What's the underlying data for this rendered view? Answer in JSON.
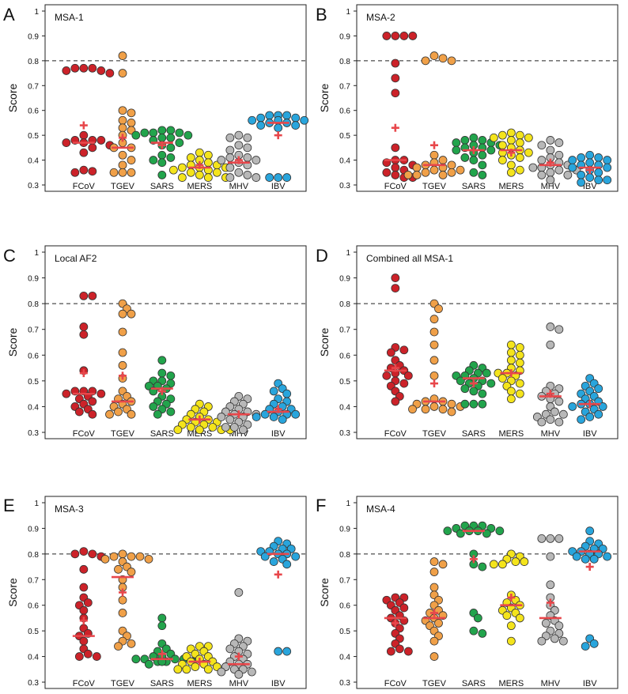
{
  "figure": {
    "ylabel": "Score",
    "yticks": [
      "0.3",
      "0.4",
      "0.5",
      "0.6",
      "0.7",
      "0.8",
      "0.9",
      "1"
    ],
    "threshold": 0.8,
    "categories": [
      "FCoV",
      "TGEV",
      "SARS",
      "MERS",
      "MHV",
      "IBV"
    ],
    "category_colors": {
      "FCoV": "#cc2229",
      "TGEV": "#f0a048",
      "SARS": "#22a44c",
      "MERS": "#f4e41c",
      "MHV": "#b8b8b8",
      "IBV": "#29a5dc"
    },
    "median_color": "#e8474b",
    "mean_marker_color": "#e8474b"
  },
  "chart_data": [
    {
      "type": "scatter",
      "panel": "A",
      "title": "MSA-1",
      "ylabel": "Score",
      "ylim": [
        0.3,
        1.0
      ],
      "threshold": 0.8,
      "categories": [
        "FCoV",
        "TGEV",
        "SARS",
        "MERS",
        "MHV",
        "IBV"
      ],
      "series": [
        {
          "name": "FCoV",
          "values": [
            0.77,
            0.77,
            0.77,
            0.76,
            0.76,
            0.75,
            0.5,
            0.48,
            0.48,
            0.48,
            0.47,
            0.47,
            0.46,
            0.45,
            0.43,
            0.36,
            0.355,
            0.35
          ],
          "median": 0.47,
          "mean": 0.54
        },
        {
          "name": "TGEV",
          "values": [
            0.82,
            0.75,
            0.6,
            0.59,
            0.56,
            0.55,
            0.53,
            0.52,
            0.5,
            0.47,
            0.45,
            0.45,
            0.42,
            0.4,
            0.38,
            0.35,
            0.35,
            0.35
          ],
          "median": 0.45,
          "mean": 0.49
        },
        {
          "name": "SARS",
          "values": [
            0.52,
            0.52,
            0.51,
            0.51,
            0.51,
            0.5,
            0.5,
            0.49,
            0.49,
            0.48,
            0.47,
            0.46,
            0.45,
            0.42,
            0.41,
            0.4,
            0.39,
            0.34
          ],
          "median": 0.47,
          "mean": 0.46
        },
        {
          "name": "MERS",
          "values": [
            0.43,
            0.42,
            0.41,
            0.4,
            0.39,
            0.38,
            0.38,
            0.37,
            0.37,
            0.37,
            0.36,
            0.36,
            0.35,
            0.35,
            0.34,
            0.33,
            0.33,
            0.33
          ],
          "median": 0.37,
          "mean": 0.38
        },
        {
          "name": "MHV",
          "values": [
            0.5,
            0.49,
            0.49,
            0.46,
            0.45,
            0.44,
            0.42,
            0.41,
            0.41,
            0.4,
            0.4,
            0.39,
            0.38,
            0.37,
            0.35,
            0.34,
            0.33,
            0.33
          ],
          "median": 0.39,
          "mean": 0.4
        },
        {
          "name": "IBV",
          "values": [
            0.58,
            0.58,
            0.58,
            0.57,
            0.57,
            0.56,
            0.56,
            0.56,
            0.55,
            0.55,
            0.54,
            0.54,
            0.53,
            0.33,
            0.33,
            0.33
          ],
          "median": 0.55,
          "mean": 0.5
        }
      ]
    },
    {
      "type": "scatter",
      "panel": "B",
      "title": "MSA-2",
      "ylabel": "Score",
      "ylim": [
        0.3,
        1.0
      ],
      "threshold": 0.8,
      "categories": [
        "FCoV",
        "TGEV",
        "SARS",
        "MERS",
        "MHV",
        "IBV"
      ],
      "series": [
        {
          "name": "FCoV",
          "values": [
            0.9,
            0.9,
            0.9,
            0.9,
            0.79,
            0.73,
            0.67,
            0.45,
            0.4,
            0.4,
            0.39,
            0.38,
            0.37,
            0.36,
            0.35,
            0.34,
            0.33,
            0.33
          ],
          "median": 0.4,
          "mean": 0.53
        },
        {
          "name": "TGEV",
          "values": [
            0.82,
            0.81,
            0.8,
            0.8,
            0.42,
            0.4,
            0.39,
            0.38,
            0.38,
            0.37,
            0.37,
            0.36,
            0.36,
            0.35,
            0.35,
            0.34,
            0.34,
            0.34
          ],
          "median": 0.38,
          "mean": 0.46
        },
        {
          "name": "SARS",
          "values": [
            0.49,
            0.48,
            0.48,
            0.47,
            0.47,
            0.46,
            0.46,
            0.45,
            0.45,
            0.44,
            0.44,
            0.43,
            0.42,
            0.41,
            0.4,
            0.38,
            0.35,
            0.34
          ],
          "median": 0.44,
          "mean": 0.44
        },
        {
          "name": "MERS",
          "values": [
            0.51,
            0.5,
            0.5,
            0.49,
            0.49,
            0.48,
            0.47,
            0.46,
            0.45,
            0.44,
            0.43,
            0.43,
            0.42,
            0.41,
            0.4,
            0.38,
            0.36,
            0.35
          ],
          "median": 0.44,
          "mean": 0.43
        },
        {
          "name": "MHV",
          "values": [
            0.48,
            0.47,
            0.46,
            0.44,
            0.42,
            0.41,
            0.4,
            0.39,
            0.38,
            0.38,
            0.37,
            0.37,
            0.36,
            0.36,
            0.35,
            0.34,
            0.34,
            0.32
          ],
          "median": 0.38,
          "mean": 0.39
        },
        {
          "name": "IBV",
          "values": [
            0.42,
            0.41,
            0.41,
            0.4,
            0.4,
            0.39,
            0.38,
            0.38,
            0.37,
            0.37,
            0.36,
            0.35,
            0.34,
            0.33,
            0.32,
            0.32,
            0.31
          ],
          "median": 0.37,
          "mean": 0.36
        }
      ]
    },
    {
      "type": "scatter",
      "panel": "C",
      "title": "Local AF2",
      "ylabel": "Score",
      "ylim": [
        0.3,
        1.0
      ],
      "threshold": 0.8,
      "categories": [
        "FCoV",
        "TGEV",
        "SARS",
        "MERS",
        "MHV",
        "IBV"
      ],
      "series": [
        {
          "name": "FCoV",
          "values": [
            0.83,
            0.83,
            0.71,
            0.68,
            0.54,
            0.46,
            0.46,
            0.46,
            0.45,
            0.45,
            0.44,
            0.43,
            0.42,
            0.41,
            0.4,
            0.39,
            0.38,
            0.37
          ],
          "median": 0.45,
          "mean": 0.53
        },
        {
          "name": "TGEV",
          "values": [
            0.8,
            0.78,
            0.76,
            0.76,
            0.69,
            0.61,
            0.56,
            0.51,
            0.46,
            0.44,
            0.43,
            0.42,
            0.41,
            0.4,
            0.39,
            0.38,
            0.37,
            0.37
          ],
          "median": 0.42,
          "mean": 0.52
        },
        {
          "name": "SARS",
          "values": [
            0.58,
            0.53,
            0.52,
            0.5,
            0.5,
            0.49,
            0.48,
            0.48,
            0.47,
            0.46,
            0.44,
            0.43,
            0.42,
            0.41,
            0.4,
            0.39,
            0.38,
            0.37
          ],
          "median": 0.47,
          "mean": 0.46
        },
        {
          "name": "MERS",
          "values": [
            0.41,
            0.4,
            0.39,
            0.38,
            0.37,
            0.36,
            0.35,
            0.35,
            0.34,
            0.34,
            0.33,
            0.33,
            0.32,
            0.32,
            0.31,
            0.31,
            0.31,
            0.31
          ],
          "median": 0.35,
          "mean": 0.35
        },
        {
          "name": "MHV",
          "values": [
            0.44,
            0.43,
            0.42,
            0.41,
            0.4,
            0.39,
            0.38,
            0.38,
            0.37,
            0.37,
            0.36,
            0.36,
            0.35,
            0.34,
            0.33,
            0.32,
            0.32,
            0.31
          ],
          "median": 0.37,
          "mean": 0.37
        },
        {
          "name": "IBV",
          "values": [
            0.49,
            0.47,
            0.46,
            0.45,
            0.43,
            0.42,
            0.41,
            0.4,
            0.39,
            0.39,
            0.38,
            0.37,
            0.37,
            0.37,
            0.36,
            0.36,
            0.35
          ],
          "median": 0.38,
          "mean": 0.39
        }
      ]
    },
    {
      "type": "scatter",
      "panel": "D",
      "title": "Combined all MSA-1",
      "ylabel": "Score",
      "ylim": [
        0.3,
        1.0
      ],
      "threshold": 0.8,
      "categories": [
        "FCoV",
        "TGEV",
        "SARS",
        "MERS",
        "MHV",
        "IBV"
      ],
      "series": [
        {
          "name": "FCoV",
          "values": [
            0.9,
            0.86,
            0.63,
            0.62,
            0.61,
            0.58,
            0.56,
            0.55,
            0.54,
            0.53,
            0.52,
            0.52,
            0.5,
            0.49,
            0.48,
            0.46,
            0.44,
            0.42
          ],
          "median": 0.54,
          "mean": 0.55
        },
        {
          "name": "TGEV",
          "values": [
            0.8,
            0.78,
            0.74,
            0.69,
            0.64,
            0.58,
            0.52,
            0.43,
            0.42,
            0.42,
            0.41,
            0.41,
            0.4,
            0.4,
            0.39,
            0.39,
            0.39,
            0.38
          ],
          "median": 0.42,
          "mean": 0.49
        },
        {
          "name": "SARS",
          "values": [
            0.56,
            0.55,
            0.54,
            0.53,
            0.53,
            0.52,
            0.52,
            0.51,
            0.5,
            0.5,
            0.49,
            0.49,
            0.48,
            0.47,
            0.46,
            0.45,
            0.41,
            0.41,
            0.41
          ],
          "median": 0.51,
          "mean": 0.49
        },
        {
          "name": "MERS",
          "values": [
            0.64,
            0.63,
            0.61,
            0.6,
            0.58,
            0.57,
            0.55,
            0.54,
            0.53,
            0.53,
            0.52,
            0.51,
            0.5,
            0.49,
            0.48,
            0.46,
            0.45,
            0.43
          ],
          "median": 0.53,
          "mean": 0.53
        },
        {
          "name": "MHV",
          "values": [
            0.71,
            0.7,
            0.64,
            0.48,
            0.47,
            0.46,
            0.45,
            0.44,
            0.43,
            0.42,
            0.4,
            0.38,
            0.37,
            0.37,
            0.36,
            0.35,
            0.34,
            0.34
          ],
          "median": 0.44,
          "mean": 0.45
        },
        {
          "name": "IBV",
          "values": [
            0.51,
            0.49,
            0.48,
            0.47,
            0.46,
            0.45,
            0.44,
            0.43,
            0.42,
            0.41,
            0.41,
            0.4,
            0.4,
            0.39,
            0.38,
            0.37,
            0.36,
            0.35
          ],
          "median": 0.41,
          "mean": 0.41
        }
      ]
    },
    {
      "type": "scatter",
      "panel": "E",
      "title": "MSA-3",
      "ylabel": "Score",
      "ylim": [
        0.3,
        1.0
      ],
      "threshold": 0.8,
      "categories": [
        "FCoV",
        "TGEV",
        "SARS",
        "MERS",
        "MHV",
        "IBV"
      ],
      "series": [
        {
          "name": "FCoV",
          "values": [
            0.81,
            0.8,
            0.8,
            0.79,
            0.74,
            0.67,
            0.63,
            0.61,
            0.6,
            0.58,
            0.55,
            0.51,
            0.49,
            0.48,
            0.46,
            0.43,
            0.41,
            0.4,
            0.4
          ],
          "median": 0.48,
          "mean": 0.54
        },
        {
          "name": "TGEV",
          "values": [
            0.8,
            0.79,
            0.79,
            0.79,
            0.78,
            0.78,
            0.77,
            0.75,
            0.74,
            0.73,
            0.7,
            0.67,
            0.62,
            0.57,
            0.5,
            0.48,
            0.46,
            0.45,
            0.44
          ],
          "median": 0.71,
          "mean": 0.65
        },
        {
          "name": "SARS",
          "values": [
            0.55,
            0.52,
            0.45,
            0.43,
            0.42,
            0.41,
            0.4,
            0.4,
            0.39,
            0.39,
            0.39,
            0.39,
            0.38,
            0.38,
            0.38,
            0.38,
            0.37
          ],
          "median": 0.39,
          "mean": 0.41
        },
        {
          "name": "MERS",
          "values": [
            0.44,
            0.44,
            0.43,
            0.42,
            0.41,
            0.4,
            0.4,
            0.39,
            0.38,
            0.38,
            0.37,
            0.37,
            0.36,
            0.36,
            0.36,
            0.35,
            0.35,
            0.35
          ],
          "median": 0.38,
          "mean": 0.38
        },
        {
          "name": "MHV",
          "values": [
            0.65,
            0.47,
            0.46,
            0.45,
            0.44,
            0.43,
            0.42,
            0.41,
            0.4,
            0.39,
            0.38,
            0.37,
            0.37,
            0.36,
            0.35,
            0.35,
            0.34,
            0.34,
            0.33
          ],
          "median": 0.37,
          "mean": 0.4
        },
        {
          "name": "IBV",
          "values": [
            0.85,
            0.84,
            0.83,
            0.82,
            0.82,
            0.81,
            0.81,
            0.8,
            0.8,
            0.79,
            0.79,
            0.78,
            0.77,
            0.76,
            0.42,
            0.42
          ],
          "median": 0.8,
          "mean": 0.72
        }
      ]
    },
    {
      "type": "scatter",
      "panel": "F",
      "title": "MSA-4",
      "ylabel": "Score",
      "ylim": [
        0.3,
        1.0
      ],
      "threshold": 0.8,
      "categories": [
        "FCoV",
        "TGEV",
        "SARS",
        "MERS",
        "MHV",
        "IBV"
      ],
      "series": [
        {
          "name": "FCoV",
          "values": [
            0.63,
            0.63,
            0.62,
            0.61,
            0.6,
            0.59,
            0.58,
            0.56,
            0.55,
            0.54,
            0.53,
            0.51,
            0.49,
            0.47,
            0.45,
            0.43,
            0.42,
            0.42
          ],
          "median": 0.55,
          "mean": 0.53
        },
        {
          "name": "TGEV",
          "values": [
            0.77,
            0.76,
            0.73,
            0.67,
            0.64,
            0.62,
            0.6,
            0.58,
            0.57,
            0.56,
            0.55,
            0.54,
            0.53,
            0.52,
            0.5,
            0.48,
            0.46,
            0.4
          ],
          "median": 0.55,
          "mean": 0.57
        },
        {
          "name": "SARS",
          "values": [
            0.91,
            0.91,
            0.91,
            0.9,
            0.9,
            0.89,
            0.89,
            0.89,
            0.89,
            0.88,
            0.88,
            0.8,
            0.76,
            0.75,
            0.57,
            0.55,
            0.5,
            0.49
          ],
          "median": 0.89,
          "mean": 0.78
        },
        {
          "name": "MERS",
          "values": [
            0.8,
            0.79,
            0.78,
            0.77,
            0.77,
            0.76,
            0.76,
            0.64,
            0.62,
            0.61,
            0.6,
            0.59,
            0.58,
            0.57,
            0.56,
            0.55,
            0.52,
            0.46
          ],
          "median": 0.6,
          "mean": 0.63
        },
        {
          "name": "MHV",
          "values": [
            0.86,
            0.86,
            0.86,
            0.79,
            0.68,
            0.63,
            0.6,
            0.58,
            0.56,
            0.54,
            0.53,
            0.52,
            0.5,
            0.49,
            0.48,
            0.47,
            0.46,
            0.46
          ],
          "median": 0.55,
          "mean": 0.61
        },
        {
          "name": "IBV",
          "values": [
            0.89,
            0.85,
            0.84,
            0.83,
            0.82,
            0.82,
            0.81,
            0.81,
            0.8,
            0.8,
            0.79,
            0.79,
            0.78,
            0.78,
            0.47,
            0.45,
            0.44
          ],
          "median": 0.81,
          "mean": 0.75
        }
      ]
    }
  ]
}
